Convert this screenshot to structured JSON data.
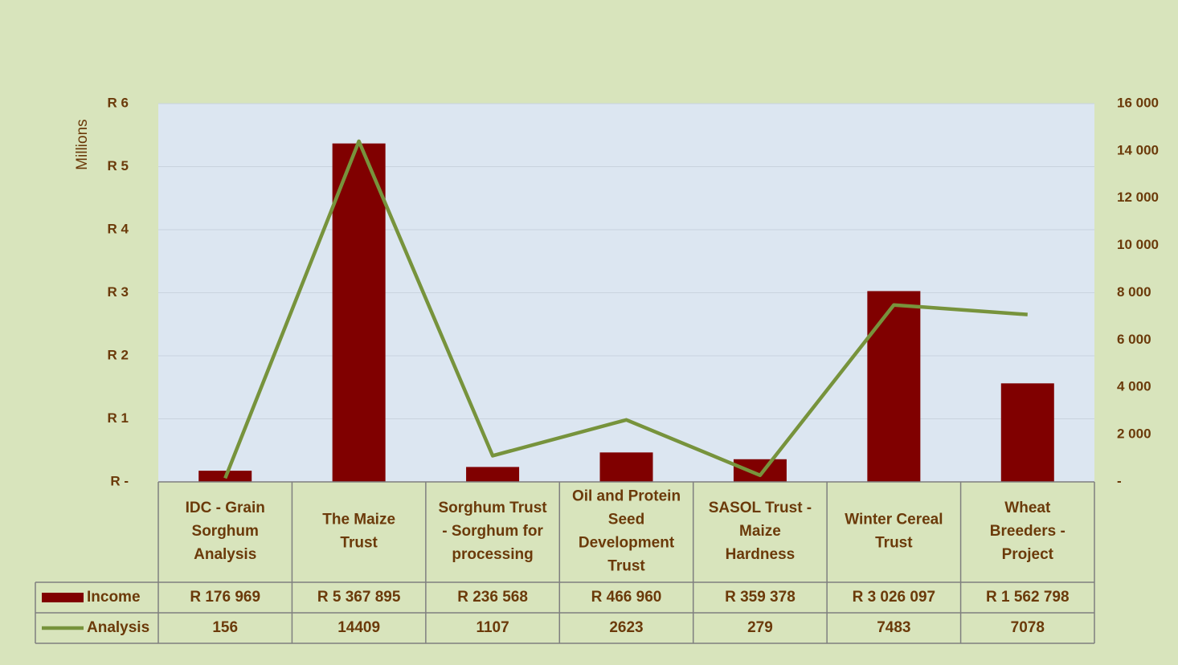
{
  "chart_data": {
    "type": "bar",
    "y_label": "Millions",
    "categories": [
      "IDC - Grain Sorghum Analysis",
      "The Maize Trust",
      "Sorghum Trust - Sorghum for processing",
      "Oil and Protein Seed Development Trust",
      "SASOL Trust - Maize Hardness",
      "Winter Cereal Trust",
      "Wheat Breeders - Project"
    ],
    "series": [
      {
        "name": "Income",
        "type": "bar",
        "color": "#800000",
        "values": [
          176969,
          5367895,
          236568,
          466960,
          359378,
          3026097,
          1562798
        ],
        "value_labels": [
          "R 176 969",
          "R 5 367 895",
          "R 236 568",
          "R 466 960",
          "R 359 378",
          "R 3 026 097",
          "R 1 562 798"
        ]
      },
      {
        "name": "Analysis",
        "type": "line",
        "color": "#77933c",
        "axis": "y2",
        "values": [
          156,
          14409,
          1107,
          2623,
          279,
          7483,
          7078
        ]
      }
    ],
    "ylim": [
      0,
      6000000
    ],
    "yticks": [
      {
        "value": 0,
        "label": "R -"
      },
      {
        "value": 1000000,
        "label": "R 1"
      },
      {
        "value": 2000000,
        "label": "R 2"
      },
      {
        "value": 3000000,
        "label": "R 3"
      },
      {
        "value": 4000000,
        "label": "R 4"
      },
      {
        "value": 5000000,
        "label": "R 5"
      },
      {
        "value": 6000000,
        "label": "R 6"
      }
    ],
    "y2lim": [
      0,
      16000
    ],
    "y2ticks": [
      {
        "value": 0,
        "label": "-"
      },
      {
        "value": 2000,
        "label": "2 000"
      },
      {
        "value": 4000,
        "label": "4 000"
      },
      {
        "value": 6000,
        "label": "6 000"
      },
      {
        "value": 8000,
        "label": "8 000"
      },
      {
        "value": 10000,
        "label": "10 000"
      },
      {
        "value": 12000,
        "label": "12 000"
      },
      {
        "value": 14000,
        "label": "14 000"
      },
      {
        "value": 16000,
        "label": "16 000"
      }
    ],
    "grid": true
  }
}
